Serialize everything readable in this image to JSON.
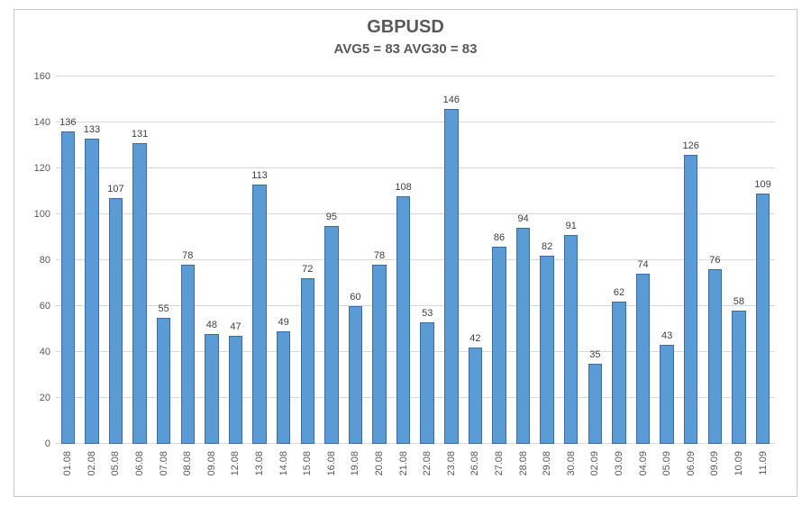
{
  "chart": {
    "type": "bar",
    "title": "GBPUSD",
    "subtitle": "AVG5 = 83  AVG30 = 83",
    "title_fontsize": 20,
    "subtitle_fontsize": 15,
    "title_color": "#595959",
    "background_color": "#ffffff",
    "plot_border_color": "#c8c8c8",
    "grid_color": "#d9d9d9",
    "axis_label_color": "#595959",
    "bar_fill_color": "#5b9bd5",
    "bar_border_color": "#3a6da0",
    "bar_label_color": "#404040",
    "bar_label_fontsize": 11,
    "axis_font_size": 11,
    "bar_width_ratio": 0.58,
    "ylim": [
      0,
      160
    ],
    "ytick_step": 20,
    "categories": [
      "01.08",
      "02.08",
      "05.08",
      "06.08",
      "07.08",
      "08.08",
      "09.08",
      "12.08",
      "13.08",
      "14.08",
      "15.08",
      "16.08",
      "19.08",
      "20.08",
      "21.08",
      "22.08",
      "23.08",
      "26.08",
      "27.08",
      "28.08",
      "29.08",
      "30.08",
      "02.09",
      "03.09",
      "04.09",
      "05.09",
      "06.09",
      "09.09",
      "10.09",
      "11.09"
    ],
    "values": [
      136,
      133,
      107,
      131,
      55,
      78,
      48,
      47,
      113,
      49,
      72,
      95,
      60,
      78,
      108,
      53,
      146,
      42,
      86,
      94,
      82,
      91,
      35,
      62,
      74,
      43,
      126,
      76,
      58,
      109
    ]
  }
}
